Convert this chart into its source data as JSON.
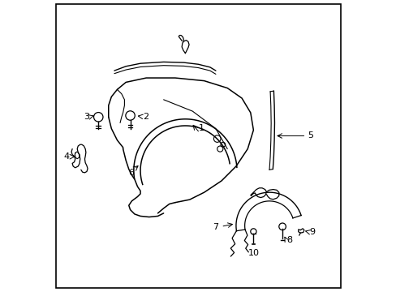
{
  "title": "",
  "background": "#ffffff",
  "border_color": "#000000",
  "line_color": "#000000",
  "line_width": 1.0,
  "figsize": [
    4.89,
    3.6
  ],
  "dpi": 100
}
